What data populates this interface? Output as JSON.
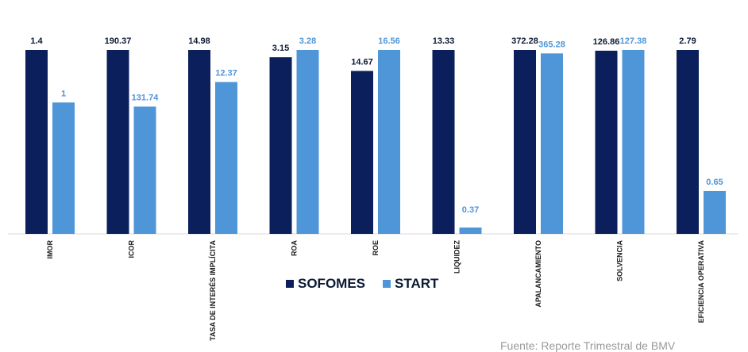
{
  "chart_data": {
    "type": "bar",
    "categories": [
      "IMOR",
      "ICOR",
      "TASA DE INTERÉS IMPLÍCITA",
      "ROA",
      "ROE",
      "LIQUIDEZ",
      "APALANCAMIENTO",
      "SOLVENCIA",
      "EFICIENCIA OPERATIVA"
    ],
    "series": [
      {
        "name": "SOFOMES",
        "color": "#0a1f5c",
        "label_color": "#0b1a33",
        "values": [
          1.4,
          190.37,
          14.98,
          3.15,
          14.67,
          13.33,
          372.28,
          126.86,
          2.79
        ]
      },
      {
        "name": "START",
        "color": "#4f96d8",
        "label_color": "#4f96d8",
        "values": [
          1,
          131.74,
          12.37,
          3.28,
          16.56,
          0.37,
          365.28,
          127.38,
          0.65
        ]
      }
    ],
    "legend_position": "bottom",
    "grid": false
  },
  "source_note": "Fuente: Reporte Trimestral de BMV"
}
